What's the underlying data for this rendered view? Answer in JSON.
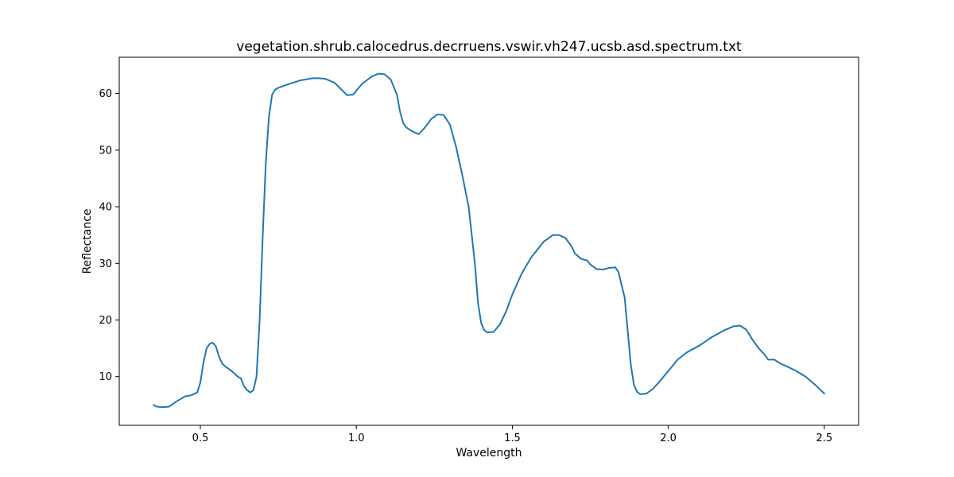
{
  "chart_data": {
    "type": "line",
    "title": "vegetation.shrub.calocedrus.decrruens.vswir.vh247.ucsb.asd.spectrum.txt",
    "xlabel": "Wavelength",
    "ylabel": "Reflectance",
    "xlim": [
      0.24,
      2.61
    ],
    "ylim": [
      1.4,
      66.4
    ],
    "xticks": [
      0.5,
      1.0,
      1.5,
      2.0,
      2.5
    ],
    "xtick_labels": [
      "0.5",
      "1.0",
      "1.5",
      "2.0",
      "2.5"
    ],
    "yticks": [
      10,
      20,
      30,
      40,
      50,
      60
    ],
    "ytick_labels": [
      "10",
      "20",
      "30",
      "40",
      "50",
      "60"
    ],
    "grid": false,
    "series": [
      {
        "color": "#1f77b4",
        "x": [
          0.35,
          0.36,
          0.38,
          0.4,
          0.42,
          0.45,
          0.47,
          0.49,
          0.5,
          0.51,
          0.52,
          0.53,
          0.54,
          0.55,
          0.56,
          0.57,
          0.58,
          0.6,
          0.62,
          0.63,
          0.64,
          0.65,
          0.66,
          0.67,
          0.68,
          0.69,
          0.7,
          0.71,
          0.72,
          0.73,
          0.74,
          0.75,
          0.76,
          0.78,
          0.82,
          0.86,
          0.88,
          0.9,
          0.93,
          0.95,
          0.97,
          0.99,
          1.0,
          1.02,
          1.05,
          1.07,
          1.09,
          1.11,
          1.13,
          1.14,
          1.15,
          1.16,
          1.18,
          1.2,
          1.22,
          1.24,
          1.26,
          1.28,
          1.3,
          1.32,
          1.34,
          1.36,
          1.38,
          1.39,
          1.4,
          1.41,
          1.42,
          1.44,
          1.46,
          1.48,
          1.5,
          1.53,
          1.56,
          1.6,
          1.63,
          1.65,
          1.67,
          1.69,
          1.7,
          1.72,
          1.74,
          1.75,
          1.77,
          1.79,
          1.81,
          1.83,
          1.84,
          1.86,
          1.87,
          1.88,
          1.89,
          1.9,
          1.91,
          1.93,
          1.95,
          1.97,
          2.0,
          2.03,
          2.06,
          2.1,
          2.14,
          2.18,
          2.21,
          2.23,
          2.25,
          2.27,
          2.29,
          2.31,
          2.32,
          2.34,
          2.36,
          2.38,
          2.41,
          2.44,
          2.47,
          2.5
        ],
        "y": [
          5.0,
          4.7,
          4.6,
          4.7,
          5.5,
          6.5,
          6.7,
          7.2,
          9.0,
          12.5,
          15.0,
          15.8,
          16.0,
          15.3,
          13.5,
          12.3,
          11.8,
          11.0,
          10.0,
          9.7,
          8.3,
          7.6,
          7.2,
          7.6,
          10.0,
          20.0,
          35.0,
          48.0,
          56.0,
          59.8,
          60.7,
          61.0,
          61.2,
          61.6,
          62.3,
          62.7,
          62.7,
          62.6,
          61.9,
          60.8,
          59.7,
          59.8,
          60.5,
          61.8,
          63.0,
          63.5,
          63.4,
          62.5,
          59.8,
          56.8,
          54.8,
          54.0,
          53.3,
          52.8,
          54.0,
          55.5,
          56.3,
          56.2,
          54.5,
          50.5,
          45.5,
          40.0,
          30.0,
          23.0,
          19.5,
          18.2,
          17.8,
          17.9,
          19.2,
          21.5,
          24.5,
          28.2,
          31.0,
          33.8,
          35.0,
          35.0,
          34.5,
          33.0,
          31.8,
          30.8,
          30.5,
          29.8,
          29.0,
          28.9,
          29.2,
          29.3,
          28.5,
          24.0,
          18.0,
          12.0,
          8.5,
          7.3,
          6.9,
          7.0,
          7.8,
          9.0,
          11.0,
          13.0,
          14.3,
          15.5,
          17.0,
          18.2,
          18.9,
          19.0,
          18.3,
          16.5,
          15.0,
          13.8,
          13.0,
          13.0,
          12.3,
          11.8,
          11.0,
          10.0,
          8.6,
          7.0
        ]
      }
    ]
  }
}
